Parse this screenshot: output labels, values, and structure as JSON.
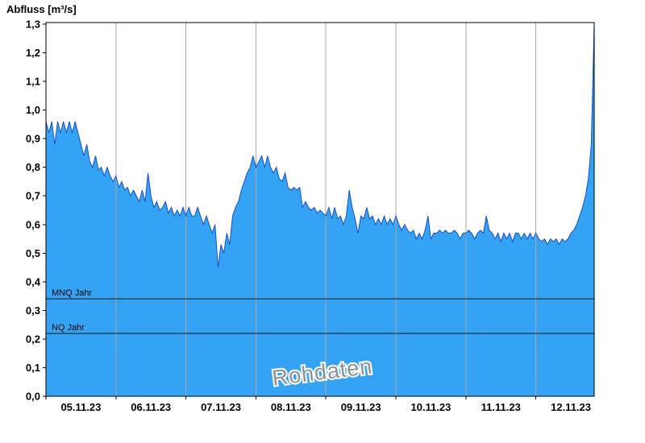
{
  "chart_data": {
    "type": "area",
    "title": "Abfluss [m³/s]",
    "ylabel": "Abfluss [m³/s]",
    "xlabel": "",
    "unit": "m³/s",
    "watermark": "Rohdaten",
    "ylim": [
      0,
      1.3
    ],
    "y_tick_step": 0.1,
    "y_tick_labels": [
      "0,0",
      "0,1",
      "0,2",
      "0,3",
      "0,4",
      "0,5",
      "0,6",
      "0,7",
      "0,8",
      "0,9",
      "1,0",
      "1,1",
      "1,2",
      "1,3"
    ],
    "x_tick_labels": [
      "05.11.23",
      "06.11.23",
      "07.11.23",
      "08.11.23",
      "09.11.23",
      "10.11.23",
      "11.11.23",
      "12.11.23"
    ],
    "dt_hours": 1,
    "grid": "vertical-day-lines",
    "legend": "none",
    "reference_lines": [
      {
        "id": "mnq",
        "label": "MNQ Jahr",
        "value": 0.34
      },
      {
        "id": "nq",
        "label": "NQ Jahr",
        "value": 0.22
      }
    ],
    "colors": {
      "fill": "#34a3f4",
      "line": "#1b4ec8",
      "grid": "#a8a8a8",
      "axis": "#000000",
      "reference": "#1a1a1a",
      "watermark": "#8b9197",
      "background": "#ffffff"
    },
    "values_m3s": [
      0.96,
      0.92,
      0.96,
      0.88,
      0.96,
      0.92,
      0.96,
      0.92,
      0.96,
      0.92,
      0.96,
      0.92,
      0.88,
      0.84,
      0.88,
      0.82,
      0.8,
      0.84,
      0.79,
      0.8,
      0.77,
      0.8,
      0.77,
      0.75,
      0.77,
      0.73,
      0.75,
      0.72,
      0.73,
      0.7,
      0.72,
      0.7,
      0.68,
      0.72,
      0.68,
      0.78,
      0.7,
      0.66,
      0.68,
      0.65,
      0.66,
      0.68,
      0.64,
      0.66,
      0.63,
      0.65,
      0.63,
      0.66,
      0.63,
      0.66,
      0.63,
      0.63,
      0.66,
      0.63,
      0.6,
      0.63,
      0.6,
      0.57,
      0.6,
      0.45,
      0.53,
      0.5,
      0.57,
      0.53,
      0.63,
      0.66,
      0.68,
      0.72,
      0.75,
      0.78,
      0.8,
      0.84,
      0.8,
      0.82,
      0.84,
      0.8,
      0.84,
      0.8,
      0.78,
      0.8,
      0.76,
      0.75,
      0.78,
      0.73,
      0.72,
      0.73,
      0.72,
      0.73,
      0.66,
      0.68,
      0.66,
      0.65,
      0.66,
      0.64,
      0.65,
      0.64,
      0.63,
      0.66,
      0.62,
      0.66,
      0.62,
      0.63,
      0.6,
      0.63,
      0.72,
      0.66,
      0.62,
      0.57,
      0.63,
      0.62,
      0.66,
      0.62,
      0.63,
      0.6,
      0.62,
      0.6,
      0.63,
      0.6,
      0.62,
      0.6,
      0.63,
      0.6,
      0.58,
      0.6,
      0.58,
      0.57,
      0.58,
      0.55,
      0.57,
      0.55,
      0.58,
      0.63,
      0.55,
      0.57,
      0.57,
      0.58,
      0.57,
      0.58,
      0.57,
      0.57,
      0.58,
      0.57,
      0.55,
      0.57,
      0.57,
      0.58,
      0.57,
      0.55,
      0.57,
      0.58,
      0.57,
      0.63,
      0.58,
      0.57,
      0.55,
      0.57,
      0.54,
      0.57,
      0.55,
      0.57,
      0.54,
      0.57,
      0.57,
      0.55,
      0.57,
      0.55,
      0.57,
      0.55,
      0.57,
      0.55,
      0.54,
      0.55,
      0.53,
      0.55,
      0.54,
      0.55,
      0.53,
      0.55,
      0.54,
      0.55,
      0.57,
      0.58,
      0.6,
      0.63,
      0.66,
      0.7,
      0.76,
      0.88,
      1.3
    ]
  }
}
